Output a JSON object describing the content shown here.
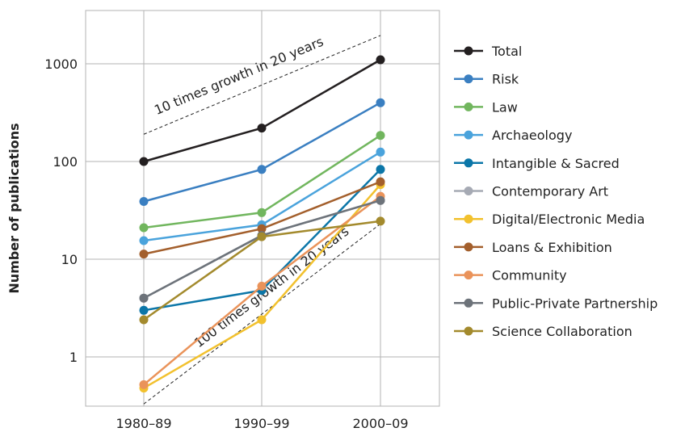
{
  "chart_data": {
    "type": "line",
    "title": "",
    "xlabel": "",
    "ylabel": "Number of publications",
    "yscale": "log",
    "ylim": [
      0.3,
      4000
    ],
    "yticks": [
      1,
      10,
      100,
      1000
    ],
    "ytick_labels": [
      "1",
      "10",
      "100",
      "1000"
    ],
    "categories": [
      "1980–89",
      "1990–99",
      "2000–09"
    ],
    "grid": true,
    "legend_position": "right",
    "series": [
      {
        "name": "Total",
        "color": "#231f20",
        "values": [
          100,
          220,
          1100
        ]
      },
      {
        "name": "Risk",
        "color": "#3a7fc1",
        "values": [
          39,
          83,
          400
        ]
      },
      {
        "name": "Law",
        "color": "#71b65e",
        "values": [
          21,
          30,
          185
        ]
      },
      {
        "name": "Archaeology",
        "color": "#4aa3dc",
        "values": [
          15.5,
          22.5,
          125
        ]
      },
      {
        "name": "Intangible & Sacred",
        "color": "#0b76a8",
        "values": [
          3,
          4.8,
          83
        ]
      },
      {
        "name": "Contemporary Art",
        "color": "#a6aab4",
        "values": [
          4,
          17.5,
          40
        ]
      },
      {
        "name": "Digital/Electronic Media",
        "color": "#f2c12e",
        "values": [
          0.48,
          2.4,
          58
        ]
      },
      {
        "name": "Loans & Exhibition",
        "color": "#a35f2c",
        "values": [
          11.3,
          20.5,
          62
        ]
      },
      {
        "name": "Community",
        "color": "#ea935a",
        "values": [
          0.52,
          5.3,
          44
        ]
      },
      {
        "name": "Public-Private Partnership",
        "color": "#6d737a",
        "values": [
          4,
          17.5,
          40
        ]
      },
      {
        "name": "Science Collaboration",
        "color": "#a38a2d",
        "values": [
          2.4,
          17,
          24.5
        ]
      }
    ],
    "annotations": [
      {
        "text": "10 times growth in 20 years",
        "x0": "1980–89",
        "y0": 190,
        "x1": "2000–09",
        "y1": 1950
      },
      {
        "text": "100 times growth in 20 years",
        "x0": "1980–89",
        "y0": 0.33,
        "x1": "2000–09",
        "y1": 23
      }
    ]
  }
}
